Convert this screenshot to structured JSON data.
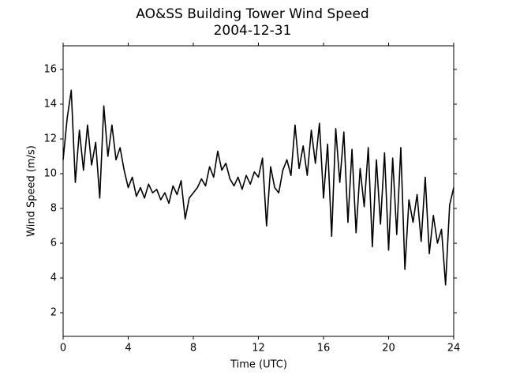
{
  "chart_data": {
    "type": "line",
    "title": "AO&SS Building Tower Wind Speed",
    "subtitle": "2004-12-31",
    "x_label": "Time (UTC)",
    "y_label": "Wind Speed (m/s)",
    "x": [
      0,
      0.25,
      0.5,
      0.75,
      1,
      1.25,
      1.5,
      1.75,
      2,
      2.25,
      2.5,
      2.75,
      3,
      3.25,
      3.5,
      3.75,
      4,
      4.25,
      4.5,
      4.75,
      5,
      5.25,
      5.5,
      5.75,
      6,
      6.25,
      6.5,
      6.75,
      7,
      7.25,
      7.5,
      7.75,
      8,
      8.25,
      8.5,
      8.75,
      9,
      9.25,
      9.5,
      9.75,
      10,
      10.25,
      10.5,
      10.75,
      11,
      11.25,
      11.5,
      11.75,
      12,
      12.25,
      12.5,
      12.75,
      13,
      13.25,
      13.5,
      13.75,
      14,
      14.25,
      14.5,
      14.75,
      15,
      15.25,
      15.5,
      15.75,
      16,
      16.25,
      16.5,
      16.75,
      17,
      17.25,
      17.5,
      17.75,
      18,
      18.25,
      18.5,
      18.75,
      19,
      19.25,
      19.5,
      19.75,
      20,
      20.25,
      20.5,
      20.75,
      21,
      21.25,
      21.5,
      21.75,
      22,
      22.25,
      22.5,
      22.75,
      23,
      23.25,
      23.5,
      23.75,
      24
    ],
    "series": [
      {
        "color": "#000000",
        "values": [
          10.8,
          13.2,
          14.8,
          9.5,
          12.5,
          10.2,
          12.8,
          10.5,
          11.8,
          8.6,
          13.9,
          11.0,
          12.8,
          10.8,
          11.5,
          10.2,
          9.2,
          9.8,
          8.7,
          9.2,
          8.6,
          9.4,
          8.9,
          9.1,
          8.5,
          8.9,
          8.3,
          9.3,
          8.8,
          9.6,
          7.4,
          8.6,
          8.9,
          9.2,
          9.7,
          9.3,
          10.4,
          9.8,
          11.3,
          10.2,
          10.6,
          9.7,
          9.3,
          9.8,
          9.1,
          9.9,
          9.4,
          10.1,
          9.8,
          10.9,
          7.0,
          10.4,
          9.2,
          8.9,
          10.2,
          10.8,
          9.9,
          12.8,
          10.3,
          11.6,
          9.9,
          12.5,
          10.6,
          12.9,
          8.6,
          11.7,
          6.4,
          12.6,
          9.5,
          12.4,
          7.2,
          11.4,
          6.6,
          10.3,
          8.1,
          11.5,
          5.8,
          10.8,
          7.1,
          11.2,
          5.6,
          10.9,
          6.5,
          11.5,
          4.5,
          8.5,
          7.2,
          8.8,
          6.1,
          9.8,
          5.4,
          7.6,
          6.0,
          6.8,
          3.6,
          8.2,
          9.2
        ]
      }
    ],
    "xlim": [
      0,
      24
    ],
    "xticks": [
      0,
      4,
      8,
      12,
      16,
      20,
      24
    ],
    "ylim": [
      0.64,
      17.36
    ],
    "yticks": [
      2,
      4,
      6,
      8,
      10,
      12,
      14,
      16
    ]
  }
}
